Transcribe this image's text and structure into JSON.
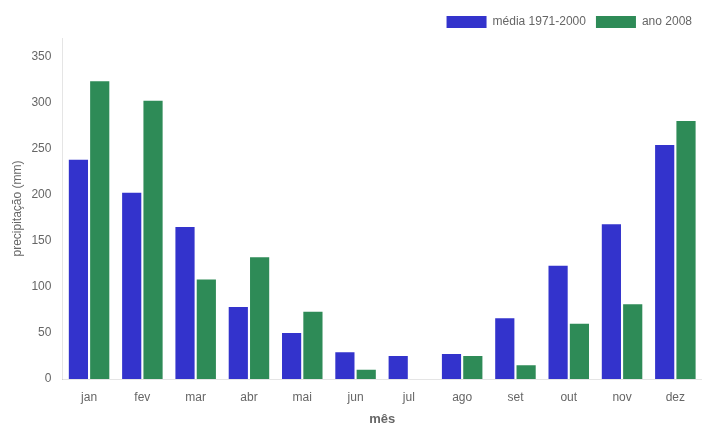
{
  "chart_data": {
    "type": "bar",
    "xlabel": "mês",
    "ylabel": "precipitação (mm)",
    "categories": [
      "jan",
      "fev",
      "mar",
      "abr",
      "mai",
      "jun",
      "jul",
      "ago",
      "set",
      "out",
      "nov",
      "dez"
    ],
    "series": [
      {
        "name": "média 1971-2000",
        "color": "#3333cc",
        "values": [
          238,
          202,
          165,
          78,
          50,
          29,
          25,
          27,
          66,
          123,
          168,
          254
        ]
      },
      {
        "name": "ano 2008",
        "color": "#2e8b57",
        "values": [
          323,
          302,
          108,
          132,
          73,
          10,
          0,
          25,
          15,
          60,
          81,
          280
        ]
      }
    ],
    "ylim": [
      0,
      370
    ],
    "yticks": [
      0,
      50,
      100,
      150,
      200,
      250,
      300,
      350
    ],
    "grid": false,
    "legend": "upper right"
  }
}
